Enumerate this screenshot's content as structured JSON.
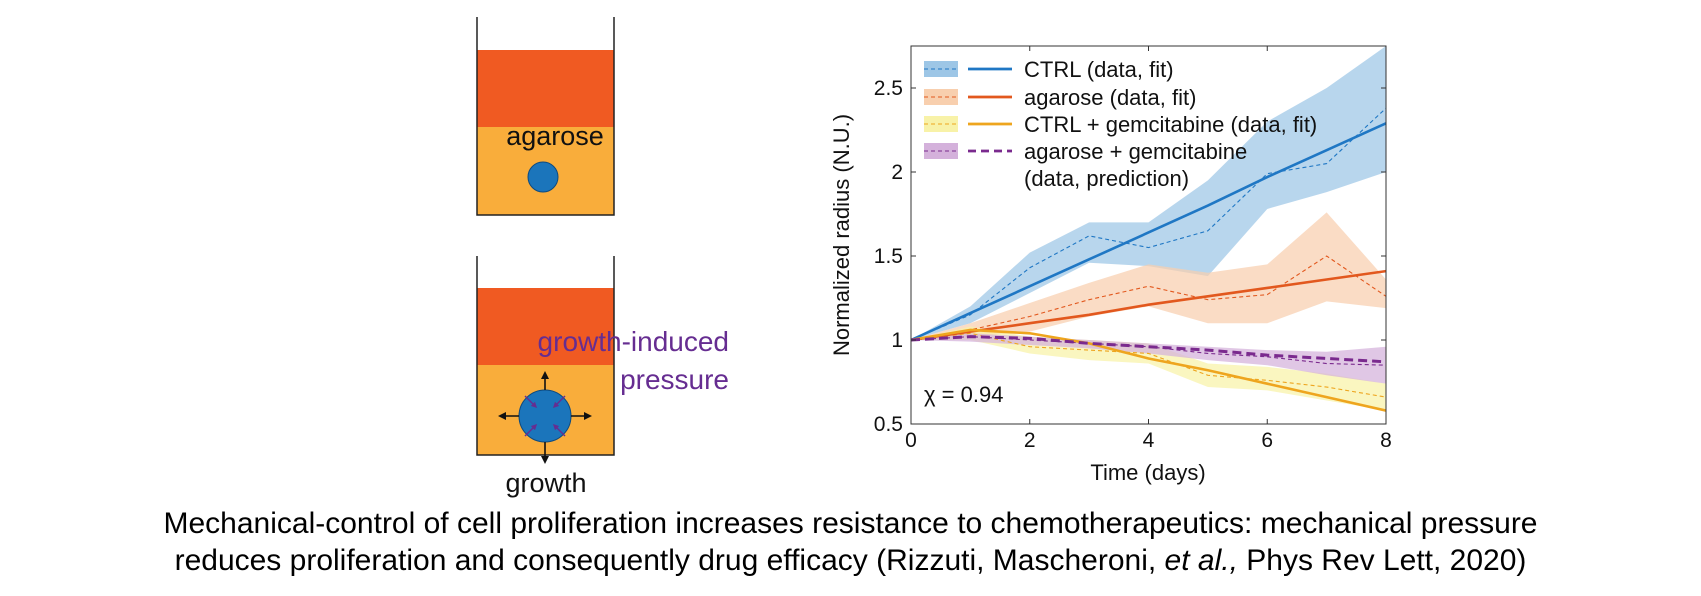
{
  "schematic": {
    "top_label": "agarose",
    "bottom_label_line1": "growth-induced",
    "bottom_label_line2": "pressure",
    "bottom_caption": "growth",
    "colors": {
      "agarose_top": "#f05a22",
      "medium": "#f9ad3b",
      "cell": "#1b75bb",
      "pressure_text": "#662d91"
    }
  },
  "chart_data": {
    "type": "line",
    "xlabel": "Time (days)",
    "ylabel": "Normalized radius (N.U.)",
    "xlim": [
      0,
      8
    ],
    "ylim": [
      0.5,
      2.75
    ],
    "xticks": [
      0,
      2,
      4,
      6,
      8
    ],
    "yticks": [
      0.5,
      1,
      1.5,
      2,
      2.5
    ],
    "xtick_labels": [
      "0",
      "2",
      "4",
      "6",
      "8"
    ],
    "ytick_labels": [
      "0.5",
      "1",
      "1.5",
      "2",
      "2.5"
    ],
    "grid": false,
    "legend_position": "top-left",
    "annotation": "χ = 0.94",
    "series": [
      {
        "legend": "CTRL (data, fit)",
        "color": "#1f77c4",
        "band_color": "#9dc6e6",
        "x": [
          0,
          1,
          2,
          3,
          4,
          5,
          6,
          7,
          8
        ],
        "data": [
          1.0,
          1.15,
          1.43,
          1.62,
          1.55,
          1.65,
          1.99,
          2.05,
          2.38
        ],
        "band_low": [
          1.0,
          1.1,
          1.28,
          1.46,
          1.44,
          1.38,
          1.78,
          1.88,
          2.0
        ],
        "band_high": [
          1.0,
          1.2,
          1.52,
          1.7,
          1.7,
          1.95,
          2.3,
          2.5,
          2.75
        ],
        "fit": [
          1.0,
          1.16,
          1.32,
          1.48,
          1.64,
          1.8,
          1.97,
          2.13,
          2.29
        ]
      },
      {
        "legend": "agarose (data, fit)",
        "color": "#e2581e",
        "band_color": "#f8cfae",
        "x": [
          0,
          1,
          2,
          3,
          4,
          5,
          6,
          7,
          8
        ],
        "data": [
          1.0,
          1.06,
          1.14,
          1.24,
          1.32,
          1.24,
          1.27,
          1.5,
          1.26
        ],
        "band_low": [
          1.0,
          1.02,
          1.05,
          1.14,
          1.2,
          1.1,
          1.1,
          1.23,
          1.19
        ],
        "band_high": [
          1.0,
          1.1,
          1.22,
          1.34,
          1.45,
          1.4,
          1.45,
          1.76,
          1.36
        ],
        "fit": [
          1.0,
          1.05,
          1.1,
          1.15,
          1.21,
          1.26,
          1.31,
          1.36,
          1.41
        ]
      },
      {
        "legend": "CTRL + gemcitabine (data, fit)",
        "color": "#eea51e",
        "band_color": "#f8f2a8",
        "x": [
          0,
          1,
          2,
          3,
          4,
          5,
          6,
          7,
          8
        ],
        "data": [
          1.0,
          1.04,
          0.96,
          0.94,
          0.92,
          0.79,
          0.76,
          0.72,
          0.66
        ],
        "band_low": [
          1.0,
          1.0,
          0.92,
          0.88,
          0.86,
          0.72,
          0.7,
          0.64,
          0.58
        ],
        "band_high": [
          1.0,
          1.08,
          1.02,
          1.0,
          0.98,
          0.86,
          0.84,
          0.8,
          0.74
        ],
        "fit": [
          1.0,
          1.06,
          1.04,
          0.98,
          0.89,
          0.82,
          0.74,
          0.66,
          0.58
        ]
      },
      {
        "legend": "agarose + gemcitabine",
        "legend_line2": "(data, prediction)",
        "color": "#7a2a8e",
        "band_color": "#d4b1db",
        "x": [
          0,
          1,
          2,
          3,
          4,
          5,
          6,
          7,
          8
        ],
        "data": [
          1.0,
          1.02,
          1.0,
          0.98,
          0.96,
          0.92,
          0.9,
          0.86,
          0.85
        ],
        "band_low": [
          1.0,
          0.99,
          0.97,
          0.95,
          0.92,
          0.88,
          0.85,
          0.79,
          0.74
        ],
        "band_high": [
          1.0,
          1.04,
          1.02,
          1.0,
          0.98,
          0.96,
          0.94,
          0.93,
          0.96
        ],
        "prediction": [
          1.0,
          1.02,
          1.01,
          0.98,
          0.96,
          0.94,
          0.91,
          0.89,
          0.87
        ]
      }
    ]
  },
  "caption": {
    "line1": "Mechanical-control of cell proliferation increases resistance to chemotherapeutics: mechanical pressure",
    "line2_a": "reduces proliferation and consequently drug efficacy (Rizzuti, Mascheroni, ",
    "line2_italic": "et al.,",
    "line2_b": " Phys Rev Lett, 2020)"
  }
}
